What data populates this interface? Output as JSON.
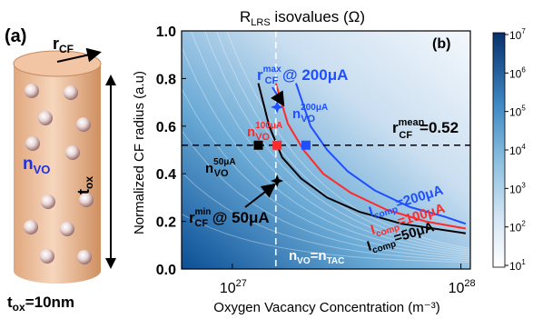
{
  "schematic": {
    "panel_label": "(a)",
    "radius_label": "r",
    "radius_sub": "CF",
    "density_label": "n",
    "density_sub": "VO",
    "thickness_label": "t",
    "thickness_sub": "ox",
    "thickness_value_main": "t",
    "thickness_value_sub": "ox",
    "thickness_value_rest": "=10nm"
  },
  "chart_data": {
    "type": "contour",
    "title_main": "R",
    "title_sub": "LRS",
    "title_rest": " isovalues (Ω)",
    "panel_label": "(b)",
    "xlabel": "Oxygen Vacancy Concentration (m⁻³)",
    "ylabel": "Normalized CF radius (a.u)",
    "x_scale": "log",
    "xlim": [
      6e+26,
      1.1e+28
    ],
    "ylim": [
      0.0,
      1.0
    ],
    "x_ticks": [
      {
        "value": 1e+27,
        "base": "10",
        "exp": "27"
      },
      {
        "value": 1e+28,
        "base": "10",
        "exp": "28"
      }
    ],
    "y_ticks": [
      "0.0",
      "0.2",
      "0.4",
      "0.6",
      "0.8",
      "1.0"
    ],
    "colorbar": {
      "scale": "log",
      "range": [
        10,
        10000000
      ],
      "ticks": [
        {
          "base": "10",
          "exp": "1"
        },
        {
          "base": "10",
          "exp": "2"
        },
        {
          "base": "10",
          "exp": "3"
        },
        {
          "base": "10",
          "exp": "4"
        },
        {
          "base": "10",
          "exp": "5"
        },
        {
          "base": "10",
          "exp": "6"
        },
        {
          "base": "10",
          "exp": "7"
        }
      ],
      "color_low": "#ffffff",
      "color_high": "#08306b"
    },
    "series": [
      {
        "name_main": "I",
        "name_sub": "comp",
        "name_rest": "=200μA",
        "color": "#1f4fff",
        "x": [
          1.9e+27,
          2.2e+27,
          2.6e+27,
          3.2e+27,
          4.2e+27,
          6e+27,
          8.5e+27,
          1.05e+28
        ],
        "y": [
          0.78,
          0.6,
          0.5,
          0.41,
          0.33,
          0.26,
          0.22,
          0.19
        ]
      },
      {
        "name_main": "I",
        "name_sub": "comp",
        "name_rest": "=100μA",
        "color": "#ff2a2a",
        "x": [
          1.55e+27,
          1.75e+27,
          2.05e+27,
          2.5e+27,
          3.3e+27,
          4.7e+27,
          7e+27,
          1.05e+28
        ],
        "y": [
          0.78,
          0.61,
          0.5,
          0.4,
          0.32,
          0.25,
          0.2,
          0.17
        ]
      },
      {
        "name_main": "I",
        "name_sub": "comp",
        "name_rest": "=50μA",
        "color": "#000000",
        "x": [
          1.3e+27,
          1.45e+27,
          1.65e+27,
          2e+27,
          2.6e+27,
          3.6e+27,
          5.5e+27,
          1.05e+28
        ],
        "y": [
          0.78,
          0.6,
          0.47,
          0.38,
          0.3,
          0.24,
          0.19,
          0.15
        ]
      }
    ],
    "reference_lines": {
      "horizontal_y": 0.52,
      "vertical_x": 1.55e+27,
      "horizontal_label_main": "r",
      "horizontal_label_sup": "mean",
      "horizontal_label_sub": "CF",
      "horizontal_label_rest": "=0.52",
      "vertical_label": "n",
      "vertical_label_sub": "VO",
      "vertical_label_eq": "=n",
      "vertical_label_sub2": "TAC"
    },
    "markers": [
      {
        "id": "blue-square",
        "x": 2.1e+27,
        "y": 0.52,
        "color": "#1f4fff",
        "label_main": "n",
        "label_sup": "200μA",
        "label_sub": "VO"
      },
      {
        "id": "red-square",
        "x": 1.57e+27,
        "y": 0.52,
        "color": "#ff2a2a",
        "label_main": "n",
        "label_sup": "100μA",
        "label_sub": "VO"
      },
      {
        "id": "black-square",
        "x": 1.3e+27,
        "y": 0.52,
        "color": "#000000",
        "label_main": "n",
        "label_sup": "50μA",
        "label_sub": "VO"
      },
      {
        "id": "blue-star",
        "x": 1.57e+27,
        "y": 0.68,
        "color": "#1f4fff",
        "label_main": "r",
        "label_sup": "max",
        "label_sub": "CF",
        "label_rest": " @ 200μA"
      },
      {
        "id": "black-star",
        "x": 1.57e+27,
        "y": 0.37,
        "color": "#000000",
        "label_main": "r",
        "label_sup": "min",
        "label_sub": "CF",
        "label_rest": " @ 50μA"
      }
    ]
  }
}
